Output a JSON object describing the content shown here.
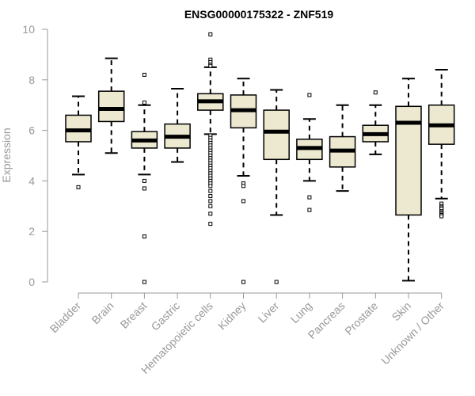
{
  "chart_data": {
    "type": "boxplot",
    "title": "ENSG00000175322 - ZNF519",
    "ylabel": "Expression",
    "xlabel": "",
    "ylim": [
      0,
      10
    ],
    "yticks": [
      0,
      2,
      4,
      6,
      8,
      10
    ],
    "box_fill": "#ede8d0",
    "box_stroke": "#000000",
    "categories": [
      "Bladder",
      "Brain",
      "Breast",
      "Gastric",
      "Hematopoietic cells",
      "Kidney",
      "Liver",
      "Lung",
      "Pancreas",
      "Prostate",
      "Skin",
      "Unknown / Other"
    ],
    "boxes": [
      {
        "category": "Bladder",
        "whisker_low": 4.25,
        "q1": 5.55,
        "median": 6.0,
        "q3": 6.6,
        "whisker_high": 7.35,
        "outliers": [
          3.75
        ]
      },
      {
        "category": "Brain",
        "whisker_low": 5.1,
        "q1": 6.35,
        "median": 6.85,
        "q3": 7.55,
        "whisker_high": 8.85,
        "outliers": []
      },
      {
        "category": "Breast",
        "whisker_low": 4.25,
        "q1": 5.3,
        "median": 5.6,
        "q3": 5.95,
        "whisker_high": 7.0,
        "outliers": [
          8.2,
          7.1,
          4.0,
          3.7,
          1.8,
          0.0
        ]
      },
      {
        "category": "Gastric",
        "whisker_low": 4.75,
        "q1": 5.3,
        "median": 5.75,
        "q3": 6.25,
        "whisker_high": 7.65,
        "outliers": []
      },
      {
        "category": "Hematopoietic cells",
        "whisker_low": 5.85,
        "q1": 6.8,
        "median": 7.15,
        "q3": 7.45,
        "whisker_high": 8.5,
        "outliers": [
          9.8,
          8.8,
          8.7,
          8.6,
          8.55,
          5.8,
          5.7,
          5.6,
          5.5,
          5.4,
          5.3,
          5.2,
          5.1,
          5.0,
          4.9,
          4.8,
          4.7,
          4.6,
          4.5,
          4.4,
          4.3,
          4.2,
          4.1,
          4.0,
          3.9,
          3.8,
          3.6,
          3.4,
          3.2,
          3.0,
          2.7,
          2.3
        ]
      },
      {
        "category": "Kidney",
        "whisker_low": 4.2,
        "q1": 6.1,
        "median": 6.8,
        "q3": 7.4,
        "whisker_high": 8.05,
        "outliers": [
          3.9,
          3.8,
          3.2,
          0.0
        ]
      },
      {
        "category": "Liver",
        "whisker_low": 2.65,
        "q1": 4.85,
        "median": 5.95,
        "q3": 6.8,
        "whisker_high": 7.6,
        "outliers": [
          0.0
        ]
      },
      {
        "category": "Lung",
        "whisker_low": 4.0,
        "q1": 4.85,
        "median": 5.3,
        "q3": 5.65,
        "whisker_high": 6.45,
        "outliers": [
          7.4,
          3.35,
          2.85
        ]
      },
      {
        "category": "Pancreas",
        "whisker_low": 3.6,
        "q1": 4.55,
        "median": 5.2,
        "q3": 5.75,
        "whisker_high": 7.0,
        "outliers": []
      },
      {
        "category": "Prostate",
        "whisker_low": 5.05,
        "q1": 5.55,
        "median": 5.85,
        "q3": 6.2,
        "whisker_high": 7.0,
        "outliers": [
          7.5
        ]
      },
      {
        "category": "Skin",
        "whisker_low": 0.05,
        "q1": 2.65,
        "median": 6.3,
        "q3": 6.95,
        "whisker_high": 8.05,
        "outliers": []
      },
      {
        "category": "Unknown / Other",
        "whisker_low": 3.3,
        "q1": 5.45,
        "median": 6.2,
        "q3": 7.0,
        "whisker_high": 8.4,
        "outliers": [
          3.1,
          3.0,
          2.95,
          2.9,
          2.8,
          2.75,
          2.7,
          2.65,
          2.6
        ]
      }
    ]
  }
}
